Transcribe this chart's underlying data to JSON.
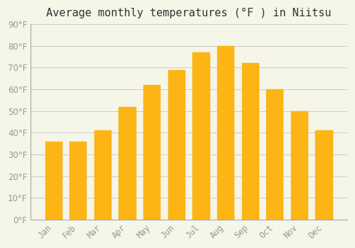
{
  "title": "Average monthly temperatures (°F ) in Niitsu",
  "months": [
    "Jan",
    "Feb",
    "Mar",
    "Apr",
    "May",
    "Jun",
    "Jul",
    "Aug",
    "Sep",
    "Oct",
    "Nov",
    "Dec"
  ],
  "values": [
    36,
    36,
    41,
    52,
    62,
    69,
    77,
    80,
    72,
    60,
    50,
    41
  ],
  "bar_color": "#FDB515",
  "bar_edge_color": "#F5A800",
  "background_color": "#F5F5E8",
  "grid_color": "#CCCCCC",
  "ylim": [
    0,
    90
  ],
  "yticks": [
    0,
    10,
    20,
    30,
    40,
    50,
    60,
    70,
    80,
    90
  ],
  "title_fontsize": 11,
  "tick_fontsize": 8.5,
  "tick_label_color": "#999999",
  "font_family": "monospace"
}
